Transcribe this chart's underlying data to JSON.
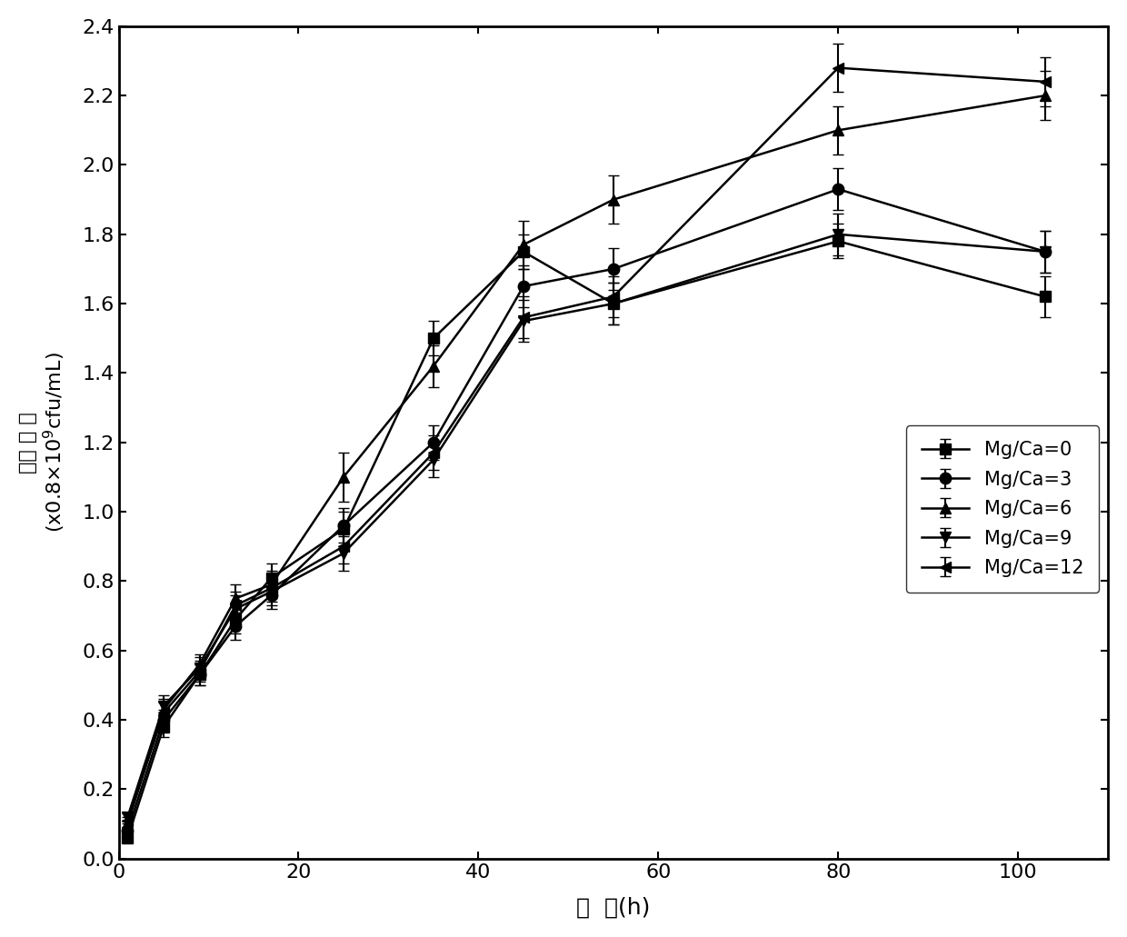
{
  "series": [
    {
      "label": "Mg/Ca=0",
      "marker": "s",
      "x": [
        1,
        5,
        9,
        13,
        17,
        25,
        35,
        45,
        55,
        80,
        103
      ],
      "y": [
        0.06,
        0.38,
        0.53,
        0.69,
        0.81,
        0.95,
        1.5,
        1.75,
        1.6,
        1.78,
        1.62
      ],
      "yerr": [
        0.01,
        0.03,
        0.03,
        0.04,
        0.04,
        0.05,
        0.05,
        0.05,
        0.06,
        0.05,
        0.06
      ]
    },
    {
      "label": "Mg/Ca=3",
      "marker": "o",
      "x": [
        1,
        5,
        9,
        13,
        17,
        25,
        35,
        45,
        55,
        80,
        103
      ],
      "y": [
        0.08,
        0.4,
        0.53,
        0.67,
        0.76,
        0.96,
        1.2,
        1.65,
        1.7,
        1.93,
        1.75
      ],
      "yerr": [
        0.01,
        0.03,
        0.03,
        0.04,
        0.04,
        0.05,
        0.05,
        0.06,
        0.06,
        0.06,
        0.06
      ]
    },
    {
      "label": "Mg/Ca=6",
      "marker": "^",
      "x": [
        1,
        5,
        9,
        13,
        17,
        25,
        35,
        45,
        55,
        80,
        103
      ],
      "y": [
        0.1,
        0.43,
        0.56,
        0.75,
        0.79,
        1.1,
        1.42,
        1.77,
        1.9,
        2.1,
        2.2
      ],
      "yerr": [
        0.01,
        0.03,
        0.03,
        0.04,
        0.04,
        0.07,
        0.06,
        0.07,
        0.07,
        0.07,
        0.07
      ]
    },
    {
      "label": "Mg/Ca=9",
      "marker": "v",
      "x": [
        1,
        5,
        9,
        13,
        17,
        25,
        35,
        45,
        55,
        80,
        103
      ],
      "y": [
        0.12,
        0.44,
        0.55,
        0.72,
        0.77,
        0.88,
        1.15,
        1.55,
        1.6,
        1.8,
        1.75
      ],
      "yerr": [
        0.01,
        0.03,
        0.03,
        0.04,
        0.04,
        0.05,
        0.05,
        0.06,
        0.06,
        0.06,
        0.06
      ]
    },
    {
      "label": "Mg/Ca=12",
      "marker": "<",
      "x": [
        1,
        5,
        9,
        13,
        17,
        25,
        35,
        45,
        55,
        80,
        103
      ],
      "y": [
        0.11,
        0.42,
        0.54,
        0.73,
        0.78,
        0.9,
        1.17,
        1.56,
        1.62,
        2.28,
        2.24
      ],
      "yerr": [
        0.01,
        0.03,
        0.03,
        0.04,
        0.04,
        0.05,
        0.05,
        0.06,
        0.06,
        0.07,
        0.07
      ]
    }
  ],
  "color": "#000000",
  "xlabel": "时  间(h)",
  "ylabel_line1": "细胞 浓 度",
  "ylabel_line2": "(x0.8×10$^9$cfu/mL)",
  "xlim": [
    0,
    110
  ],
  "ylim": [
    0.0,
    2.4
  ],
  "xticks": [
    0,
    20,
    40,
    60,
    80,
    100
  ],
  "yticks": [
    0.0,
    0.2,
    0.4,
    0.6,
    0.8,
    1.0,
    1.2,
    1.4,
    1.6,
    1.8,
    2.0,
    2.2,
    2.4
  ],
  "markersize": 9,
  "linewidth": 1.8,
  "capsize": 4,
  "elinewidth": 1.5,
  "tick_labelsize": 16,
  "xlabel_fontsize": 18,
  "ylabel_fontsize": 16,
  "legend_fontsize": 15
}
